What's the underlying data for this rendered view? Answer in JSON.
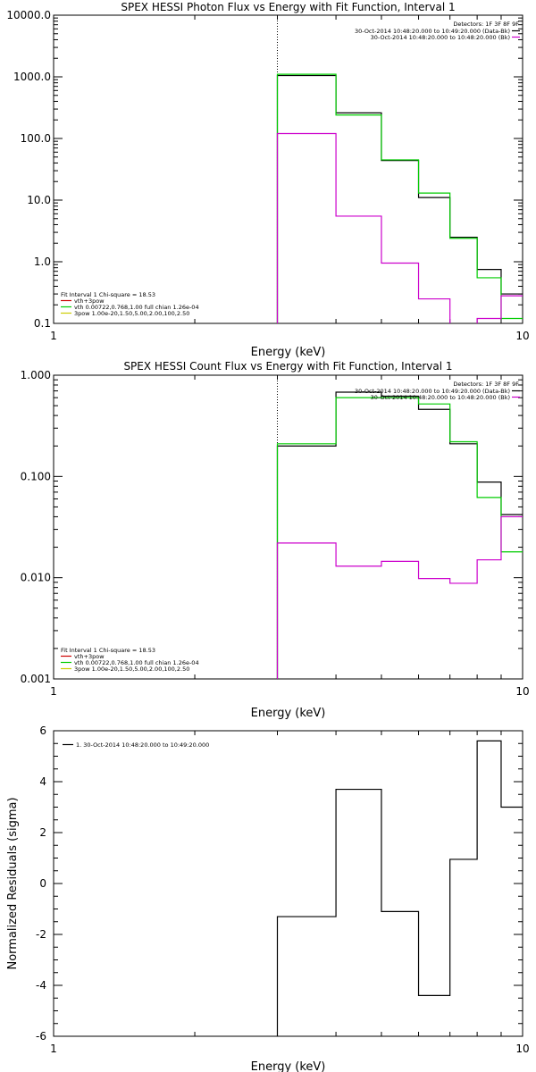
{
  "chart_data": [
    {
      "type": "line",
      "title": "SPEX HESSI Photon Flux vs Energy with Fit Function, Interval 1",
      "xlabel": "Energy (keV)",
      "ylabel": "",
      "x_scale": "log",
      "y_scale": "log",
      "xlim": [
        1,
        10
      ],
      "ylim": [
        0.1,
        10000
      ],
      "x_tick_labels": [
        "1",
        "10"
      ],
      "y_tick_labels": [
        "0.1",
        "1.0",
        "10.0",
        "100.0",
        "1000.0",
        "10000.0"
      ],
      "vline_x": 3.0,
      "legend_top": {
        "placement": "top-right",
        "header": "Detectors: 1F 3F 8F 9F",
        "entries": [
          {
            "label": "30-Oct-2014 10:48:20.000 to 10:49:20.000 (Data-Bk)",
            "color": "#000000"
          },
          {
            "label": "30-Oct-2014 10:48:20.000 to 10:48:20.000 (Bk)",
            "color": "#cc00cc"
          }
        ]
      },
      "legend_bottom": {
        "placement": "bottom-left",
        "header": "Fit Interval 1   Chi-square = 18.53",
        "entries": [
          {
            "label": "vth+3pow",
            "color": "#cc0000"
          },
          {
            "label": "vth 0.00722,0.768,1.00  full chian 1.26e-04",
            "color": "#00cc00"
          },
          {
            "label": "3pow 1.00e-20,1.50,5.00,2.00,100,2.50",
            "color": "#cccc00"
          }
        ]
      },
      "series": [
        {
          "color": "#000000",
          "edges": [
            3.0,
            4.0,
            5.0,
            6.0,
            7.0,
            8.0,
            9.0,
            10.0
          ],
          "values": [
            1050,
            260,
            44,
            11,
            2.5,
            0.75,
            0.3
          ]
        },
        {
          "color": "#00cc00",
          "edges": [
            3.0,
            4.0,
            5.0,
            6.0,
            7.0,
            8.0,
            9.0,
            10.0
          ],
          "values": [
            1100,
            240,
            45,
            13,
            2.4,
            0.55,
            0.12
          ]
        },
        {
          "color": "#cc00cc",
          "edges": [
            3.0,
            4.0,
            5.0,
            6.0,
            7.0,
            8.0,
            9.0,
            10.0
          ],
          "values": [
            120,
            5.5,
            0.95,
            0.25,
            0.09,
            0.12,
            0.28
          ]
        }
      ]
    },
    {
      "type": "line",
      "title": "SPEX HESSI Count Flux vs Energy with Fit Function, Interval 1",
      "xlabel": "Energy (keV)",
      "ylabel": "",
      "x_scale": "log",
      "y_scale": "log",
      "xlim": [
        1,
        10
      ],
      "ylim": [
        0.001,
        1
      ],
      "x_tick_labels": [
        "1",
        "10"
      ],
      "y_tick_labels": [
        "0.001",
        "0.010",
        "0.100",
        "1.000"
      ],
      "vline_x": 3.0,
      "legend_top": {
        "placement": "top-right",
        "header": "Detectors: 1F 3F 8F 9F",
        "entries": [
          {
            "label": "30-Oct-2014 10:48:20.000 to 10:49:20.000 (Data-Bk)",
            "color": "#000000"
          },
          {
            "label": "30-Oct-2014 10:48:20.000 to 10:48:20.000 (Bk)",
            "color": "#cc00cc"
          }
        ]
      },
      "legend_bottom": {
        "placement": "bottom-left",
        "header": "Fit Interval 1   Chi-square = 18.53",
        "entries": [
          {
            "label": "vth+3pow",
            "color": "#cc0000"
          },
          {
            "label": "vth 0.00722,0.768,1.00  full chian 1.26e-04",
            "color": "#00cc00"
          },
          {
            "label": "3pow 1.00e-20,1.50,5.00,2.00,100,2.50",
            "color": "#cccc00"
          }
        ]
      },
      "series": [
        {
          "color": "#000000",
          "edges": [
            3.0,
            4.0,
            5.0,
            6.0,
            7.0,
            8.0,
            9.0,
            10.0
          ],
          "values": [
            0.2,
            0.68,
            0.62,
            0.46,
            0.21,
            0.088,
            0.042
          ]
        },
        {
          "color": "#00cc00",
          "edges": [
            3.0,
            4.0,
            5.0,
            6.0,
            7.0,
            8.0,
            9.0,
            10.0
          ],
          "values": [
            0.21,
            0.6,
            0.6,
            0.52,
            0.22,
            0.062,
            0.018
          ]
        },
        {
          "color": "#cc00cc",
          "edges": [
            3.0,
            4.0,
            5.0,
            6.0,
            7.0,
            8.0,
            9.0,
            10.0
          ],
          "values": [
            0.022,
            0.013,
            0.0145,
            0.0098,
            0.0088,
            0.015,
            0.04
          ]
        }
      ]
    },
    {
      "type": "line",
      "title": "",
      "xlabel": "Energy (keV)",
      "ylabel": "Normalized Residuals (sigma)",
      "x_scale": "log",
      "y_scale": "linear",
      "xlim": [
        1,
        10
      ],
      "ylim": [
        -6,
        6
      ],
      "x_tick_labels": [
        "1",
        "10"
      ],
      "y_tick_labels": [
        "-6",
        "-4",
        "-2",
        "0",
        "2",
        "4",
        "6"
      ],
      "legend_top": {
        "placement": "top-left",
        "header": "",
        "entries": [
          {
            "label": "1. 30-Oct-2014 10:48:20.000 to 10:49:20.000",
            "color": "#000000"
          }
        ]
      },
      "series": [
        {
          "color": "#000000",
          "edges": [
            3.0,
            4.0,
            5.0,
            6.0,
            7.0,
            8.0,
            9.0,
            10.0
          ],
          "values": [
            -1.3,
            3.7,
            -1.1,
            -4.4,
            0.95,
            5.6,
            3.0
          ]
        }
      ]
    }
  ]
}
